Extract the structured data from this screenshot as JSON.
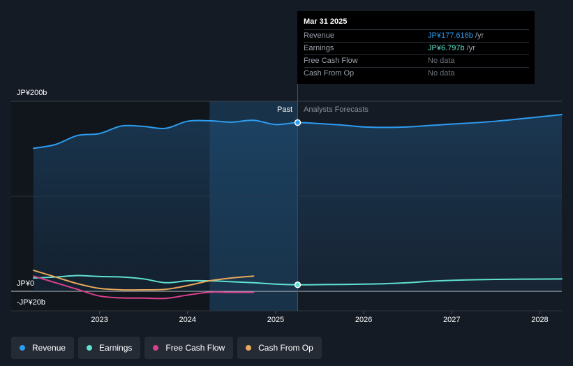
{
  "colors": {
    "revenue": "#2d9cf0",
    "earnings": "#5fe0d0",
    "free_cash_flow": "#d6408c",
    "cash_from_op": "#e9a85a",
    "background": "#151b24",
    "grid": "#3a4049"
  },
  "tooltip": {
    "date": "Mar 31 2025",
    "rows": [
      {
        "name": "Revenue",
        "value": "JP¥177.616b",
        "unit": " /yr"
      },
      {
        "name": "Earnings",
        "value": "JP¥6.797b",
        "unit": " /yr"
      },
      {
        "name": "Free Cash Flow",
        "value": "No data",
        "unit": ""
      },
      {
        "name": "Cash From Op",
        "value": "No data",
        "unit": ""
      }
    ]
  },
  "chart_data": {
    "type": "line",
    "y_unit": "JP¥ billions",
    "ylim": [
      -20,
      200
    ],
    "y_tick_labels": [
      {
        "value": 200,
        "label": "JP¥200b"
      },
      {
        "value": 0,
        "label": "JP¥0"
      },
      {
        "value": -20,
        "label": "-JP¥20b"
      }
    ],
    "x_tick_labels": [
      "2023",
      "2024",
      "2025",
      "2026",
      "2027",
      "2028"
    ],
    "xlim": [
      2022.25,
      2028.25
    ],
    "divider_x": 2025.25,
    "past_label": "Past",
    "forecast_label": "Analysts Forecasts",
    "highlight_start_x": 2024.25,
    "series": [
      {
        "name": "Revenue",
        "color_key": "revenue",
        "points": [
          [
            2022.25,
            150.5
          ],
          [
            2022.5,
            154.5
          ],
          [
            2022.75,
            164
          ],
          [
            2023.0,
            166
          ],
          [
            2023.25,
            174
          ],
          [
            2023.5,
            173.5
          ],
          [
            2023.75,
            171.5
          ],
          [
            2024.0,
            179
          ],
          [
            2024.25,
            179.5
          ],
          [
            2024.5,
            178
          ],
          [
            2024.75,
            180
          ],
          [
            2025.0,
            175.5
          ],
          [
            2025.25,
            177.6
          ],
          [
            2025.5,
            176.5
          ],
          [
            2025.75,
            175
          ],
          [
            2026.0,
            173
          ],
          [
            2026.25,
            172.5
          ],
          [
            2026.5,
            173
          ],
          [
            2026.75,
            174.5
          ],
          [
            2027.0,
            176
          ],
          [
            2027.5,
            179
          ],
          [
            2028.25,
            186
          ]
        ]
      },
      {
        "name": "Earnings",
        "color_key": "earnings",
        "points": [
          [
            2022.25,
            14
          ],
          [
            2022.5,
            15
          ],
          [
            2022.75,
            16.5
          ],
          [
            2023.0,
            15.5
          ],
          [
            2023.25,
            15
          ],
          [
            2023.5,
            13
          ],
          [
            2023.75,
            9
          ],
          [
            2024.0,
            11
          ],
          [
            2024.25,
            11
          ],
          [
            2024.5,
            10
          ],
          [
            2024.75,
            9
          ],
          [
            2025.0,
            7.5
          ],
          [
            2025.25,
            6.8
          ],
          [
            2025.5,
            7
          ],
          [
            2025.75,
            7.2
          ],
          [
            2026.0,
            7.5
          ],
          [
            2026.25,
            8
          ],
          [
            2026.5,
            9
          ],
          [
            2026.75,
            10.5
          ],
          [
            2027.0,
            11.5
          ],
          [
            2027.5,
            12.5
          ],
          [
            2028.25,
            13
          ]
        ]
      },
      {
        "name": "Free Cash Flow",
        "color_key": "free_cash_flow",
        "points": [
          [
            2022.25,
            16
          ],
          [
            2022.5,
            9
          ],
          [
            2022.75,
            2
          ],
          [
            2023.0,
            -5
          ],
          [
            2023.25,
            -7
          ],
          [
            2023.5,
            -7.2
          ],
          [
            2023.75,
            -7.5
          ],
          [
            2024.0,
            -4
          ],
          [
            2024.25,
            -1
          ],
          [
            2024.5,
            -1.2
          ],
          [
            2024.75,
            -1.2
          ]
        ]
      },
      {
        "name": "Cash From Op",
        "color_key": "cash_from_op",
        "points": [
          [
            2022.25,
            22
          ],
          [
            2022.5,
            15
          ],
          [
            2022.75,
            8
          ],
          [
            2023.0,
            3
          ],
          [
            2023.25,
            1.5
          ],
          [
            2023.5,
            1.5
          ],
          [
            2023.75,
            2
          ],
          [
            2024.0,
            6
          ],
          [
            2024.25,
            11
          ],
          [
            2024.5,
            14
          ],
          [
            2024.75,
            16
          ]
        ]
      }
    ],
    "tooltip_point_x": 2025.25
  },
  "legend": [
    {
      "label": "Revenue",
      "color_key": "revenue"
    },
    {
      "label": "Earnings",
      "color_key": "earnings"
    },
    {
      "label": "Free Cash Flow",
      "color_key": "free_cash_flow"
    },
    {
      "label": "Cash From Op",
      "color_key": "cash_from_op"
    }
  ]
}
